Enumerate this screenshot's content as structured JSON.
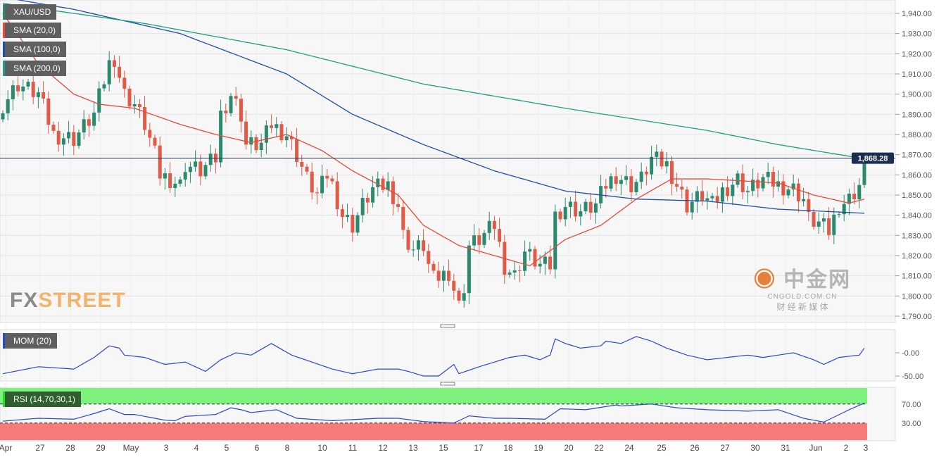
{
  "legend": {
    "symbol": "XAU/USD",
    "sma20": "SMA (20,0)",
    "sma100": "SMA (100,0)",
    "sma200": "SMA (200,0)",
    "mom": "MOM (20)",
    "rsi": "RSI (14,70,30,1)"
  },
  "current_price_label": "1,868.28",
  "logo": {
    "fx": "FX",
    "street": "STREET"
  },
  "watermark": {
    "cn": "中金网",
    "domain": "CNGOLD.COM.CN",
    "tag": "财 经 新 媒 体"
  },
  "colors": {
    "up": "#2b8a6e",
    "down": "#e05a47",
    "sma20": "#e8493a",
    "sma100": "#1f4ea8",
    "sma200": "#1a9e84",
    "mom": "#2a47d0",
    "price_line": "#1b2e4f"
  },
  "chart_data": {
    "type": "candlestick",
    "title": "XAU/USD",
    "y_ticks": [
      "1,940.00",
      "1,930.00",
      "1,920.00",
      "1,910.00",
      "1,900.00",
      "1,890.00",
      "1,880.00",
      "1,870.00",
      "1,860.00",
      "1,850.00",
      "1,840.00",
      "1,830.00",
      "1,820.00",
      "1,810.00",
      "1,800.00",
      "1,790.00"
    ],
    "ylim": [
      1790,
      1940
    ],
    "current_price": 1868.28,
    "x_labels": [
      "Apr",
      "27",
      "28",
      "29",
      "May",
      "3",
      "4",
      "5",
      "6",
      "8",
      "10",
      "11",
      "12",
      "13",
      "15",
      "17",
      "18",
      "19",
      "20",
      "22",
      "24",
      "25",
      "26",
      "27",
      "30",
      "31",
      "Jun",
      "2",
      "3"
    ],
    "candle_count": 171,
    "close_anchors": [
      [
        0,
        1895
      ],
      [
        3,
        1905
      ],
      [
        7,
        1900
      ],
      [
        10,
        1880
      ],
      [
        14,
        1878
      ],
      [
        18,
        1890
      ],
      [
        21,
        1915
      ],
      [
        22,
        1918
      ],
      [
        24,
        1900
      ],
      [
        26,
        1895
      ],
      [
        28,
        1885
      ],
      [
        30,
        1870
      ],
      [
        31,
        1860
      ],
      [
        33,
        1858
      ],
      [
        35,
        1855
      ],
      [
        36,
        1865
      ],
      [
        39,
        1862
      ],
      [
        42,
        1868
      ],
      [
        43,
        1890
      ],
      [
        45,
        1900
      ],
      [
        47,
        1890
      ],
      [
        48,
        1875
      ],
      [
        51,
        1875
      ],
      [
        53,
        1885
      ],
      [
        56,
        1880
      ],
      [
        58,
        1870
      ],
      [
        60,
        1858
      ],
      [
        62,
        1850
      ],
      [
        64,
        1860
      ],
      [
        65,
        1855
      ],
      [
        67,
        1840
      ],
      [
        69,
        1835
      ],
      [
        71,
        1845
      ],
      [
        73,
        1853
      ],
      [
        76,
        1855
      ],
      [
        78,
        1845
      ],
      [
        79,
        1830
      ],
      [
        81,
        1823
      ],
      [
        83,
        1825
      ],
      [
        84,
        1815
      ],
      [
        85,
        1808
      ],
      [
        88,
        1812
      ],
      [
        90,
        1795
      ],
      [
        91,
        1805
      ],
      [
        92,
        1825
      ],
      [
        94,
        1828
      ],
      [
        97,
        1835
      ],
      [
        99,
        1815
      ],
      [
        101,
        1810
      ],
      [
        103,
        1822
      ],
      [
        106,
        1815
      ],
      [
        108,
        1815
      ],
      [
        109,
        1840
      ],
      [
        111,
        1845
      ],
      [
        114,
        1842
      ],
      [
        117,
        1845
      ],
      [
        119,
        1855
      ],
      [
        121,
        1860
      ],
      [
        124,
        1855
      ],
      [
        126,
        1858
      ],
      [
        128,
        1868
      ],
      [
        131,
        1865
      ],
      [
        133,
        1855
      ],
      [
        135,
        1845
      ],
      [
        138,
        1850
      ],
      [
        140,
        1845
      ],
      [
        142,
        1852
      ],
      [
        145,
        1858
      ],
      [
        147,
        1852
      ],
      [
        150,
        1858
      ],
      [
        153,
        1855
      ],
      [
        156,
        1853
      ],
      [
        158,
        1848
      ],
      [
        159,
        1838
      ],
      [
        161,
        1836
      ],
      [
        163,
        1832
      ],
      [
        165,
        1845
      ],
      [
        167,
        1848
      ],
      [
        169,
        1855
      ],
      [
        170,
        1868
      ]
    ],
    "series": [
      {
        "name": "SMA (20,0)",
        "anchors": [
          [
            0,
            1940
          ],
          [
            7,
            1915
          ],
          [
            14,
            1900
          ],
          [
            19,
            1895
          ],
          [
            26,
            1893
          ],
          [
            35,
            1885
          ],
          [
            42,
            1880
          ],
          [
            49,
            1876
          ],
          [
            56,
            1880
          ],
          [
            63,
            1872
          ],
          [
            69,
            1862
          ],
          [
            78,
            1850
          ],
          [
            83,
            1835
          ],
          [
            90,
            1825
          ],
          [
            97,
            1820
          ],
          [
            104,
            1815
          ],
          [
            111,
            1828
          ],
          [
            118,
            1835
          ],
          [
            125,
            1848
          ],
          [
            132,
            1858
          ],
          [
            139,
            1858
          ],
          [
            146,
            1857
          ],
          [
            153,
            1856
          ],
          [
            160,
            1850
          ],
          [
            167,
            1846
          ],
          [
            170,
            1848
          ]
        ]
      },
      {
        "name": "SMA (100,0)",
        "anchors": [
          [
            0,
            1948
          ],
          [
            14,
            1942
          ],
          [
            35,
            1930
          ],
          [
            56,
            1910
          ],
          [
            69,
            1890
          ],
          [
            83,
            1875
          ],
          [
            97,
            1862
          ],
          [
            111,
            1852
          ],
          [
            125,
            1848
          ],
          [
            139,
            1847
          ],
          [
            153,
            1843
          ],
          [
            170,
            1841
          ]
        ]
      },
      {
        "name": "SMA (200,0)",
        "anchors": [
          [
            0,
            1945
          ],
          [
            28,
            1935
          ],
          [
            56,
            1922
          ],
          [
            83,
            1905
          ],
          [
            111,
            1893
          ],
          [
            139,
            1882
          ],
          [
            153,
            1875
          ],
          [
            170,
            1868
          ]
        ]
      }
    ],
    "mom": {
      "name": "MOM (20)",
      "y_ticks": [
        "-0.00",
        "-50.00"
      ],
      "anchors": [
        [
          0,
          -45
        ],
        [
          7,
          -30
        ],
        [
          14,
          -35
        ],
        [
          18,
          -10
        ],
        [
          21,
          15
        ],
        [
          23,
          10
        ],
        [
          24,
          -5
        ],
        [
          28,
          -10
        ],
        [
          32,
          -25
        ],
        [
          36,
          -20
        ],
        [
          40,
          -40
        ],
        [
          43,
          -15
        ],
        [
          46,
          0
        ],
        [
          49,
          -5
        ],
        [
          53,
          20
        ],
        [
          57,
          -5
        ],
        [
          61,
          -20
        ],
        [
          65,
          -35
        ],
        [
          69,
          -45
        ],
        [
          74,
          -35
        ],
        [
          78,
          -35
        ],
        [
          80,
          -40
        ],
        [
          83,
          -50
        ],
        [
          86,
          -50
        ],
        [
          89,
          -25
        ],
        [
          90,
          -45
        ],
        [
          94,
          -30
        ],
        [
          100,
          -10
        ],
        [
          103,
          -5
        ],
        [
          106,
          -15
        ],
        [
          108,
          -5
        ],
        [
          109,
          30
        ],
        [
          111,
          20
        ],
        [
          114,
          10
        ],
        [
          118,
          15
        ],
        [
          119,
          25
        ],
        [
          122,
          20
        ],
        [
          125,
          35
        ],
        [
          128,
          25
        ],
        [
          131,
          10
        ],
        [
          135,
          -5
        ],
        [
          139,
          -15
        ],
        [
          143,
          -10
        ],
        [
          147,
          -5
        ],
        [
          150,
          -10
        ],
        [
          156,
          0
        ],
        [
          160,
          -15
        ],
        [
          162,
          -25
        ],
        [
          165,
          -10
        ],
        [
          169,
          -5
        ],
        [
          170,
          10
        ]
      ]
    },
    "rsi": {
      "name": "RSI (14,70,30,1)",
      "upper": 70,
      "lower": 30,
      "y_ticks": [
        "70.00",
        "30.00"
      ],
      "anchors": [
        [
          0,
          34
        ],
        [
          7,
          40
        ],
        [
          14,
          38
        ],
        [
          18,
          50
        ],
        [
          21,
          60
        ],
        [
          24,
          48
        ],
        [
          26,
          48
        ],
        [
          32,
          36
        ],
        [
          34,
          35
        ],
        [
          36,
          44
        ],
        [
          42,
          48
        ],
        [
          45,
          62
        ],
        [
          47,
          58
        ],
        [
          49,
          52
        ],
        [
          54,
          58
        ],
        [
          58,
          40
        ],
        [
          65,
          35
        ],
        [
          74,
          40
        ],
        [
          78,
          40
        ],
        [
          83,
          33
        ],
        [
          89,
          30
        ],
        [
          92,
          45
        ],
        [
          97,
          40
        ],
        [
          100,
          40
        ],
        [
          107,
          38
        ],
        [
          110,
          60
        ],
        [
          115,
          58
        ],
        [
          121,
          68
        ],
        [
          122,
          66
        ],
        [
          128,
          70
        ],
        [
          133,
          62
        ],
        [
          139,
          58
        ],
        [
          147,
          55
        ],
        [
          153,
          58
        ],
        [
          158,
          40
        ],
        [
          162,
          32
        ],
        [
          167,
          58
        ],
        [
          170,
          72
        ]
      ]
    }
  }
}
